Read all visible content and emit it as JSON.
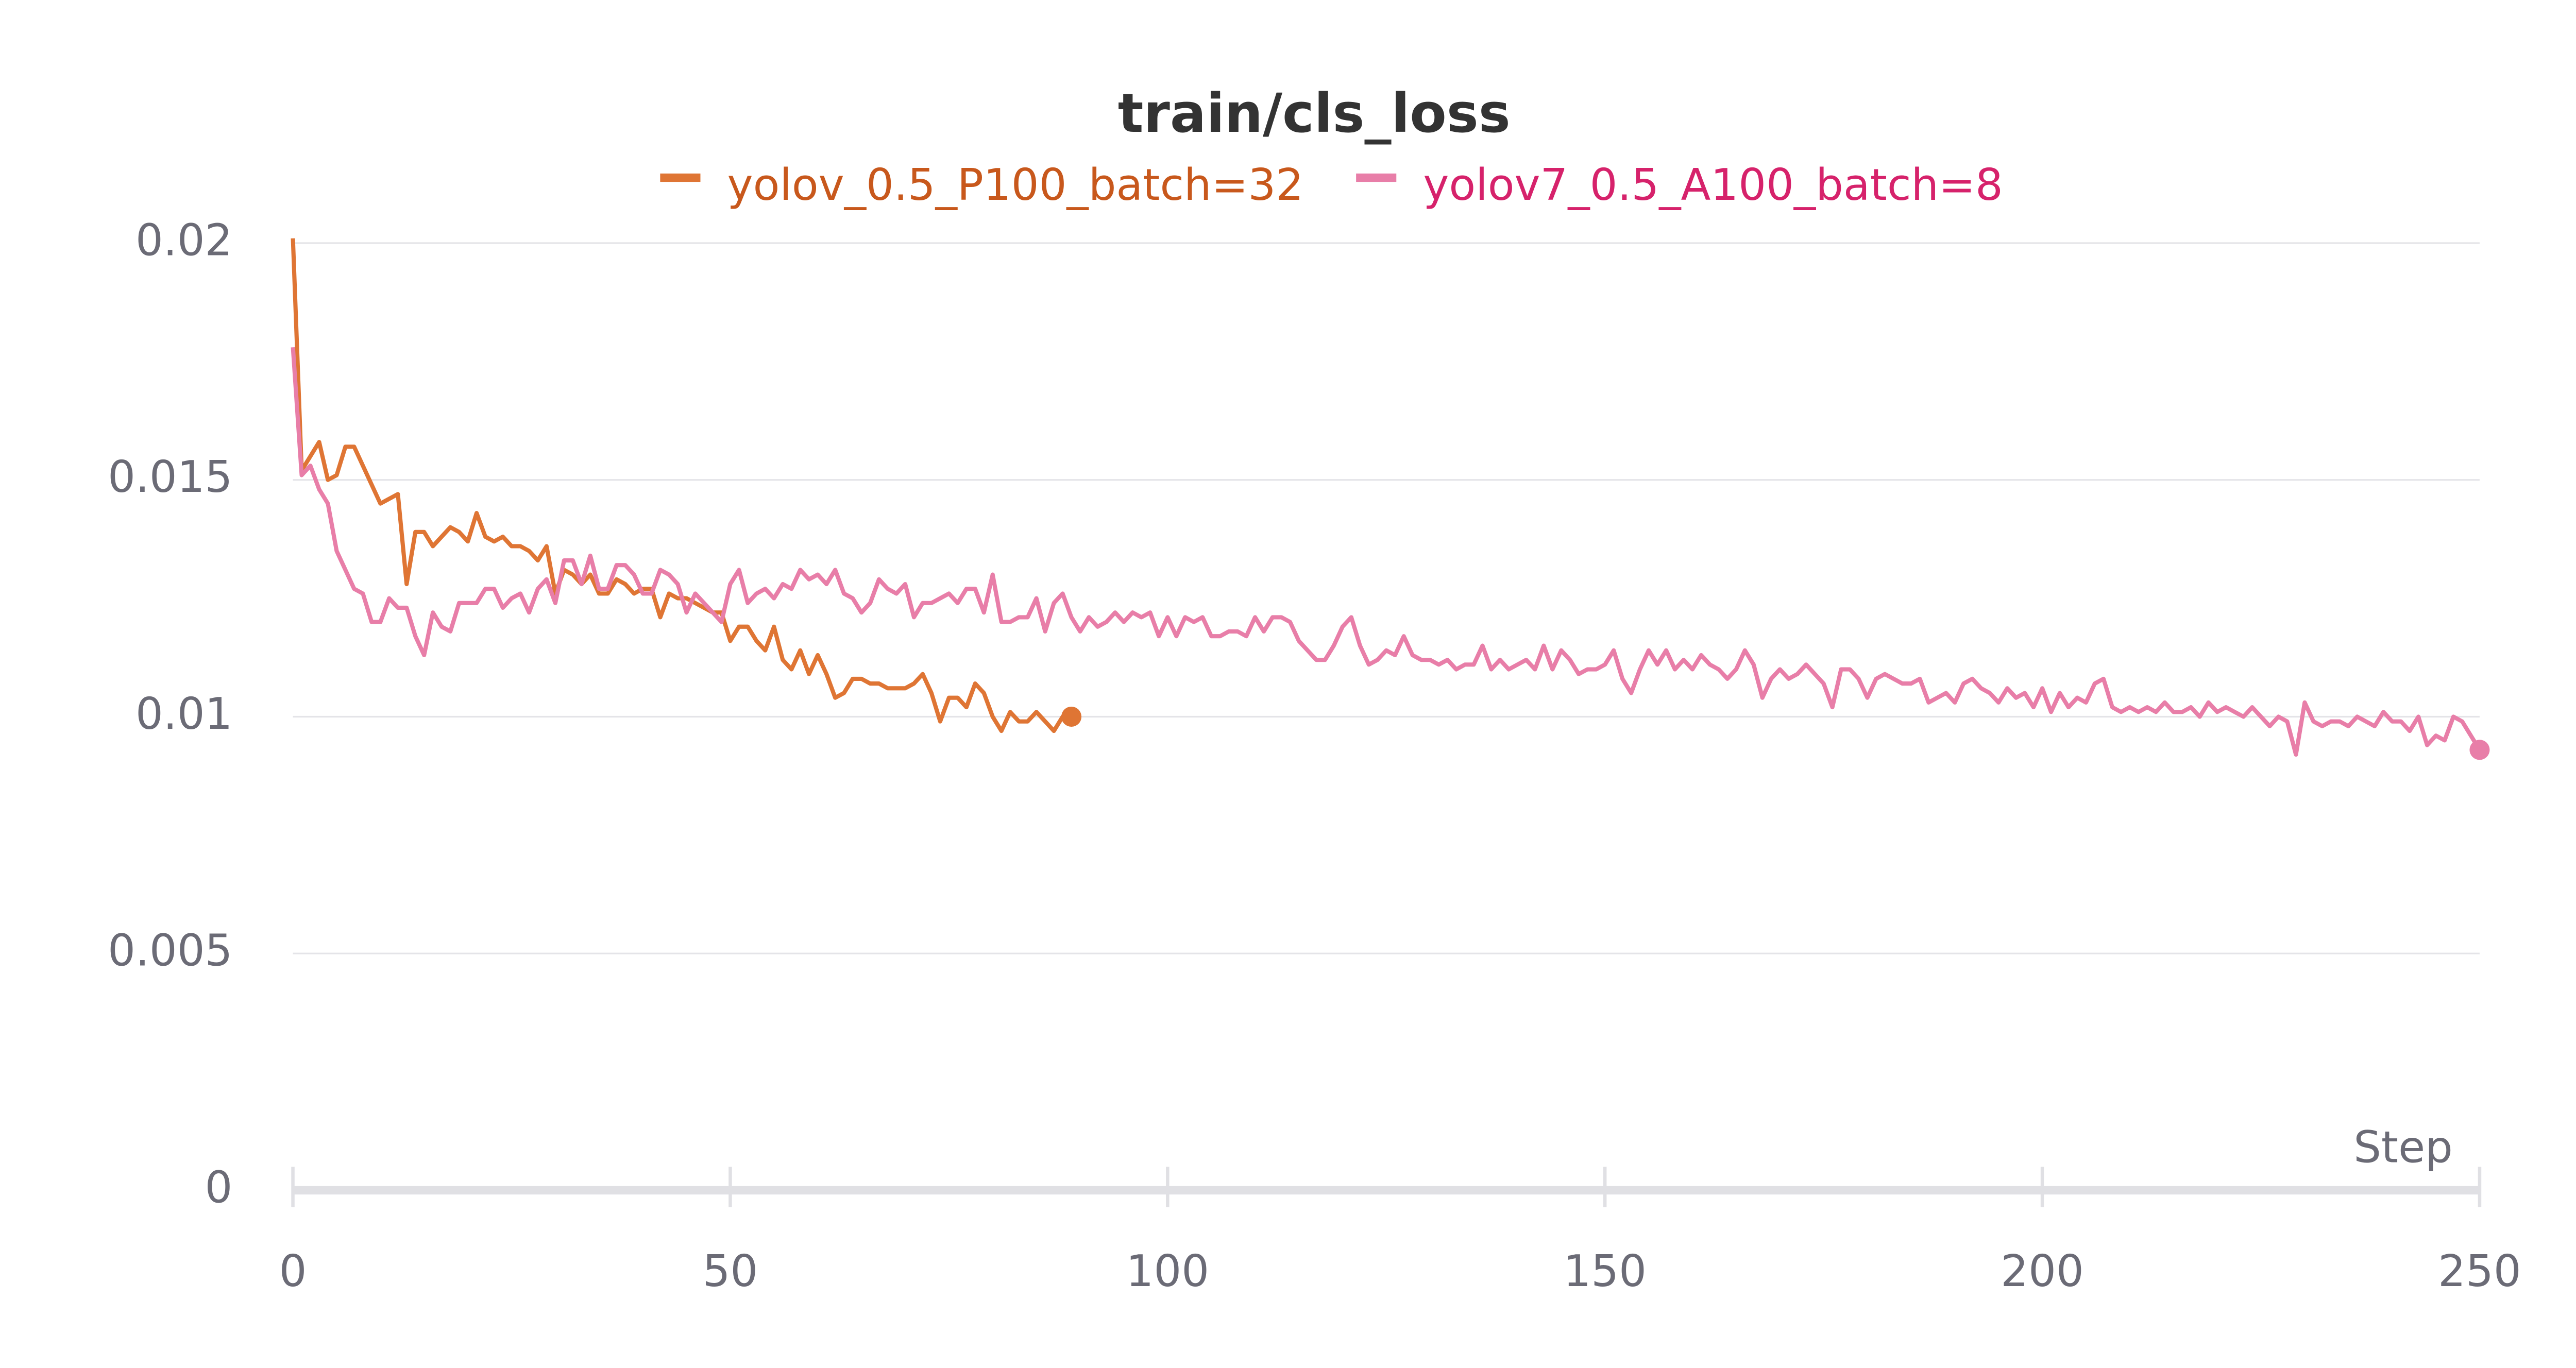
{
  "chart_data": {
    "type": "line",
    "title": "train/cls_loss",
    "xlabel": "Step",
    "x": [
      0,
      1,
      2,
      3,
      4,
      5,
      6,
      7,
      8,
      9,
      10,
      11,
      12,
      13,
      14,
      15,
      16,
      17,
      18,
      19,
      20,
      21,
      22,
      23,
      24,
      25,
      26,
      27,
      28,
      29,
      30,
      31,
      32,
      33,
      34,
      35,
      36,
      37,
      38,
      39,
      40,
      41,
      42,
      43,
      44,
      45,
      46,
      47,
      48,
      49,
      50,
      51,
      52,
      53,
      54,
      55,
      56,
      57,
      58,
      59,
      60,
      61,
      62,
      63,
      64,
      65,
      66,
      67,
      68,
      69,
      70,
      71,
      72,
      73,
      74,
      75,
      76,
      77,
      78,
      79,
      80,
      81,
      82,
      83,
      84,
      85,
      86,
      87,
      88,
      89,
      90,
      91,
      92,
      93,
      94,
      95,
      96,
      97,
      98,
      99,
      100,
      101,
      102,
      103,
      104,
      105,
      106,
      107,
      108,
      109,
      110,
      111,
      112,
      113,
      114,
      115,
      116,
      117,
      118,
      119,
      120,
      121,
      122,
      123,
      124,
      125,
      126,
      127,
      128,
      129,
      130,
      131,
      132,
      133,
      134,
      135,
      136,
      137,
      138,
      139,
      140,
      141,
      142,
      143,
      144,
      145,
      146,
      147,
      148,
      149,
      150,
      151,
      152,
      153,
      154,
      155,
      156,
      157,
      158,
      159,
      160,
      161,
      162,
      163,
      164,
      165,
      166,
      167,
      168,
      169,
      170,
      171,
      172,
      173,
      174,
      175,
      176,
      177,
      178,
      179,
      180,
      181,
      182,
      183,
      184,
      185,
      186,
      187,
      188,
      189,
      190,
      191,
      192,
      193,
      194,
      195,
      196,
      197,
      198,
      199,
      200,
      201,
      202,
      203,
      204,
      205,
      206,
      207,
      208,
      209,
      210,
      211,
      212,
      213,
      214,
      215,
      216,
      217,
      218,
      219,
      220,
      221,
      222,
      223,
      224,
      225,
      226,
      227,
      228,
      229,
      230,
      231,
      232,
      233,
      234,
      235,
      236,
      237,
      238,
      239,
      240,
      241,
      242,
      243,
      244,
      245,
      246,
      247,
      248,
      249,
      250
    ],
    "series": [
      {
        "name": "yolov_0.5_P100_batch=32",
        "color": "#df7534",
        "label_color": "#c8581c",
        "values": [
          0.0201,
          0.0152,
          0.0155,
          0.0158,
          0.015,
          0.0151,
          0.0157,
          0.0157,
          0.0153,
          0.0149,
          0.0145,
          0.0146,
          0.0147,
          0.0128,
          0.0139,
          0.0139,
          0.0136,
          0.0138,
          0.014,
          0.0139,
          0.0137,
          0.0143,
          0.0138,
          0.0137,
          0.0138,
          0.0136,
          0.0136,
          0.0135,
          0.0133,
          0.0136,
          0.0126,
          0.0131,
          0.013,
          0.0128,
          0.013,
          0.0126,
          0.0126,
          0.0129,
          0.0128,
          0.0126,
          0.0127,
          0.0127,
          0.0121,
          0.0126,
          0.0125,
          0.0125,
          0.0124,
          0.0123,
          0.0122,
          0.0122,
          0.0116,
          0.0119,
          0.0119,
          0.0116,
          0.0114,
          0.0119,
          0.0112,
          0.011,
          0.0114,
          0.0109,
          0.0113,
          0.0109,
          0.0104,
          0.0105,
          0.0108,
          0.0108,
          0.0107,
          0.0107,
          0.0106,
          0.0106,
          0.0106,
          0.0107,
          0.0109,
          0.0105,
          0.0099,
          0.0104,
          0.0104,
          0.0102,
          0.0107,
          0.0105,
          0.01,
          0.0097,
          0.0101,
          0.0099,
          0.0099,
          0.0101,
          0.0099,
          0.0097,
          0.01,
          0.01,
          null,
          null,
          null,
          null,
          null,
          null,
          null,
          null,
          null,
          null,
          null,
          null,
          null,
          null,
          null,
          null,
          null,
          null,
          null,
          null,
          null,
          null,
          null,
          null,
          null,
          null,
          null,
          null,
          null,
          null,
          null,
          null,
          null,
          null,
          null,
          null,
          null,
          null,
          null,
          null,
          null,
          null,
          null,
          null,
          null,
          null,
          null,
          null,
          null,
          null,
          null,
          null,
          null,
          null,
          null,
          null,
          null,
          null,
          null,
          null,
          null,
          null,
          null,
          null,
          null,
          null,
          null,
          null,
          null,
          null,
          null,
          null,
          null,
          null,
          null,
          null,
          null,
          null,
          null,
          null,
          null,
          null,
          null,
          null,
          null,
          null,
          null,
          null,
          null,
          null,
          null,
          null,
          null,
          null,
          null,
          null,
          null,
          null,
          null,
          null,
          null,
          null,
          null,
          null,
          null,
          null,
          null,
          null,
          null,
          null,
          null,
          null,
          null,
          null,
          null,
          null,
          null,
          null,
          null,
          null,
          null,
          null,
          null,
          null,
          null,
          null,
          null,
          null,
          null,
          null,
          null,
          null,
          null,
          null,
          null,
          null,
          null,
          null,
          null,
          null,
          null,
          null,
          null,
          null,
          null,
          null,
          null,
          null,
          null,
          null,
          null,
          null,
          null,
          null,
          null,
          null,
          null,
          null,
          null,
          null,
          null
        ]
      },
      {
        "name": "yolov7_0.5_A100_batch=8",
        "color": "#e87ea8",
        "label_color": "#d6226b",
        "values": [
          0.0178,
          0.0151,
          0.0153,
          0.0148,
          0.0145,
          0.0135,
          0.0131,
          0.0127,
          0.0126,
          0.012,
          0.012,
          0.0125,
          0.0123,
          0.0123,
          0.0117,
          0.0113,
          0.0122,
          0.0119,
          0.0118,
          0.0124,
          0.0124,
          0.0124,
          0.0127,
          0.0127,
          0.0123,
          0.0125,
          0.0126,
          0.0122,
          0.0127,
          0.0129,
          0.0124,
          0.0133,
          0.0133,
          0.0128,
          0.0134,
          0.0127,
          0.0127,
          0.0132,
          0.0132,
          0.013,
          0.0126,
          0.0126,
          0.0131,
          0.013,
          0.0128,
          0.0122,
          0.0126,
          0.0124,
          0.0122,
          0.012,
          0.0128,
          0.0131,
          0.0124,
          0.0126,
          0.0127,
          0.0125,
          0.0128,
          0.0127,
          0.0131,
          0.0129,
          0.013,
          0.0128,
          0.0131,
          0.0126,
          0.0125,
          0.0122,
          0.0124,
          0.0129,
          0.0127,
          0.0126,
          0.0128,
          0.0121,
          0.0124,
          0.0124,
          0.0125,
          0.0126,
          0.0124,
          0.0127,
          0.0127,
          0.0122,
          0.013,
          0.012,
          0.012,
          0.0121,
          0.0121,
          0.0125,
          0.0118,
          0.0124,
          0.0126,
          0.0121,
          0.0118,
          0.0121,
          0.0119,
          0.012,
          0.0122,
          0.012,
          0.0122,
          0.0121,
          0.0122,
          0.0117,
          0.0121,
          0.0117,
          0.0121,
          0.012,
          0.0121,
          0.0117,
          0.0117,
          0.0118,
          0.0118,
          0.0117,
          0.0121,
          0.0118,
          0.0121,
          0.0121,
          0.012,
          0.0116,
          0.0114,
          0.0112,
          0.0112,
          0.0115,
          0.0119,
          0.0121,
          0.0115,
          0.0111,
          0.0112,
          0.0114,
          0.0113,
          0.0117,
          0.0113,
          0.0112,
          0.0112,
          0.0111,
          0.0112,
          0.011,
          0.0111,
          0.0111,
          0.0115,
          0.011,
          0.0112,
          0.011,
          0.0111,
          0.0112,
          0.011,
          0.0115,
          0.011,
          0.0114,
          0.0112,
          0.0109,
          0.011,
          0.011,
          0.0111,
          0.0114,
          0.0108,
          0.0105,
          0.011,
          0.0114,
          0.0111,
          0.0114,
          0.011,
          0.0112,
          0.011,
          0.0113,
          0.0111,
          0.011,
          0.0108,
          0.011,
          0.0114,
          0.0111,
          0.0104,
          0.0108,
          0.011,
          0.0108,
          0.0109,
          0.0111,
          0.0109,
          0.0107,
          0.0102,
          0.011,
          0.011,
          0.0108,
          0.0104,
          0.0108,
          0.0109,
          0.0108,
          0.0107,
          0.0107,
          0.0108,
          0.0103,
          0.0104,
          0.0105,
          0.0103,
          0.0107,
          0.0108,
          0.0106,
          0.0105,
          0.0103,
          0.0106,
          0.0104,
          0.0105,
          0.0102,
          0.0106,
          0.0101,
          0.0105,
          0.0102,
          0.0104,
          0.0103,
          0.0107,
          0.0108,
          0.0102,
          0.0101,
          0.0102,
          0.0101,
          0.0102,
          0.0101,
          0.0103,
          0.0101,
          0.0101,
          0.0102,
          0.01,
          0.0103,
          0.0101,
          0.0102,
          0.0101,
          0.01,
          0.0102,
          0.01,
          0.0098,
          0.01,
          0.0099,
          0.0092,
          0.0103,
          0.0099,
          0.0098,
          0.0099,
          0.0099,
          0.0098,
          0.01,
          0.0099,
          0.0098,
          0.0101,
          0.0099,
          0.0099,
          0.0097,
          0.01,
          0.0094,
          0.0096,
          0.0095,
          0.01,
          0.0099,
          0.0096,
          0.0093
        ]
      }
    ],
    "xlim": [
      0,
      250
    ],
    "xticks": [
      0,
      50,
      100,
      150,
      200,
      250
    ],
    "ylim": [
      0,
      0.02
    ],
    "yticks": [
      0,
      0.005,
      0.01,
      0.015,
      0.02
    ],
    "grid": true
  }
}
